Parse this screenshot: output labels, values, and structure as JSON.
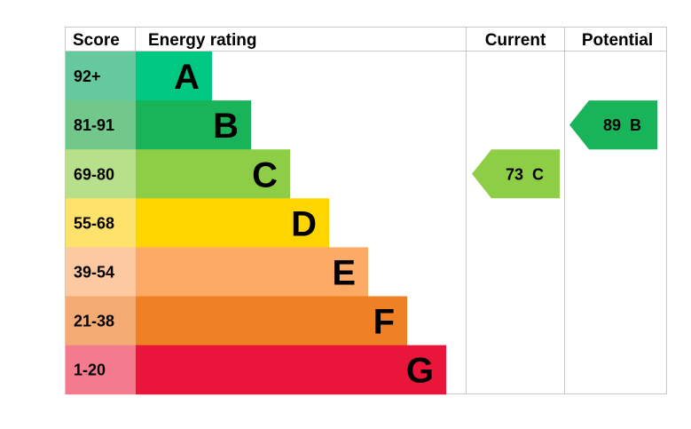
{
  "chart_data": {
    "type": "bar",
    "headers": {
      "score": "Score",
      "energy_rating": "Energy rating",
      "current": "Current",
      "potential": "Potential"
    },
    "bands": [
      {
        "letter": "A",
        "range": "92+",
        "bar_color": "#00c781",
        "score_color": "#66c99d",
        "text_color": "#000000"
      },
      {
        "letter": "B",
        "range": "81-91",
        "bar_color": "#19b459",
        "score_color": "#72c88a",
        "text_color": "#000000"
      },
      {
        "letter": "C",
        "range": "69-80",
        "bar_color": "#8dce46",
        "score_color": "#b8e08b",
        "text_color": "#000000"
      },
      {
        "letter": "D",
        "range": "55-68",
        "bar_color": "#ffd500",
        "score_color": "#ffe26b",
        "text_color": "#000000"
      },
      {
        "letter": "E",
        "range": "39-54",
        "bar_color": "#fcaa65",
        "score_color": "#fdc9a0",
        "text_color": "#000000"
      },
      {
        "letter": "F",
        "range": "21-38",
        "bar_color": "#ef8023",
        "score_color": "#f4ab73",
        "text_color": "#000000"
      },
      {
        "letter": "G",
        "range": "1-20",
        "bar_color": "#e9153b",
        "score_color": "#f47a8e",
        "text_color": "#000000"
      }
    ],
    "current": {
      "value": 73,
      "band": "C",
      "label": "73  C",
      "color": "#8dce46",
      "text_color": "#000000"
    },
    "potential": {
      "value": 89,
      "band": "B",
      "label": "89  B",
      "color": "#19b459",
      "text_color": "#000000"
    }
  }
}
